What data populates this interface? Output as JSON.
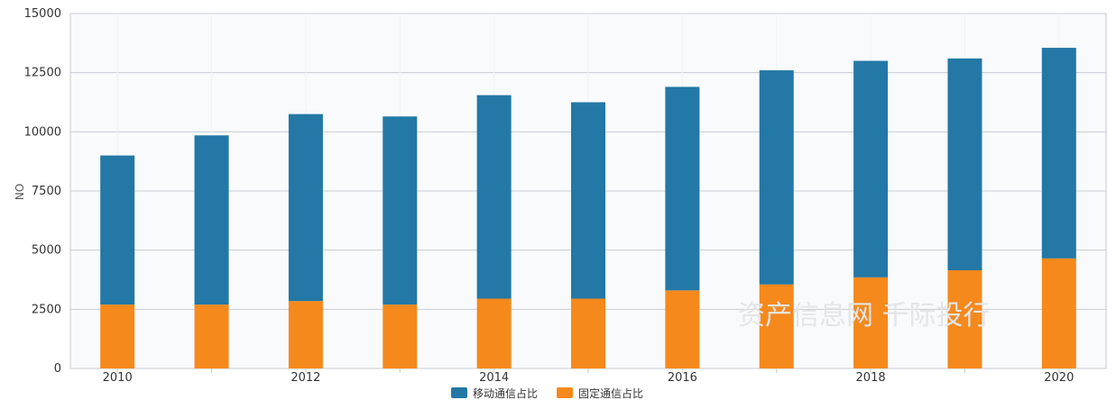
{
  "chart_data": {
    "type": "bar",
    "stacked": true,
    "categories": [
      "2010",
      "2011",
      "2012",
      "2013",
      "2014",
      "2015",
      "2016",
      "2017",
      "2018",
      "2019",
      "2020"
    ],
    "x_tick_labels": [
      "2010",
      "2012",
      "2014",
      "2016",
      "2018",
      "2020"
    ],
    "ylabel": "ON",
    "ylim": [
      0,
      15000
    ],
    "y_ticks": [
      0,
      2500,
      5000,
      7500,
      10000,
      12500,
      15000
    ],
    "grid": true,
    "legend_position": "bottom-center",
    "series": [
      {
        "name": "固定通信占比",
        "color": "#f5891c",
        "values": [
          2700,
          2700,
          2850,
          2700,
          2950,
          2950,
          3300,
          3550,
          3850,
          4150,
          4650
        ]
      },
      {
        "name": "移动通信占比",
        "color": "#2378a6",
        "values": [
          6300,
          7150,
          7900,
          7950,
          8600,
          8300,
          8600,
          9050,
          9150,
          8950,
          8900
        ]
      }
    ]
  },
  "legend": [
    "移动通信占比",
    "固定通信占比"
  ],
  "watermark": "资产信息网 千际投行"
}
